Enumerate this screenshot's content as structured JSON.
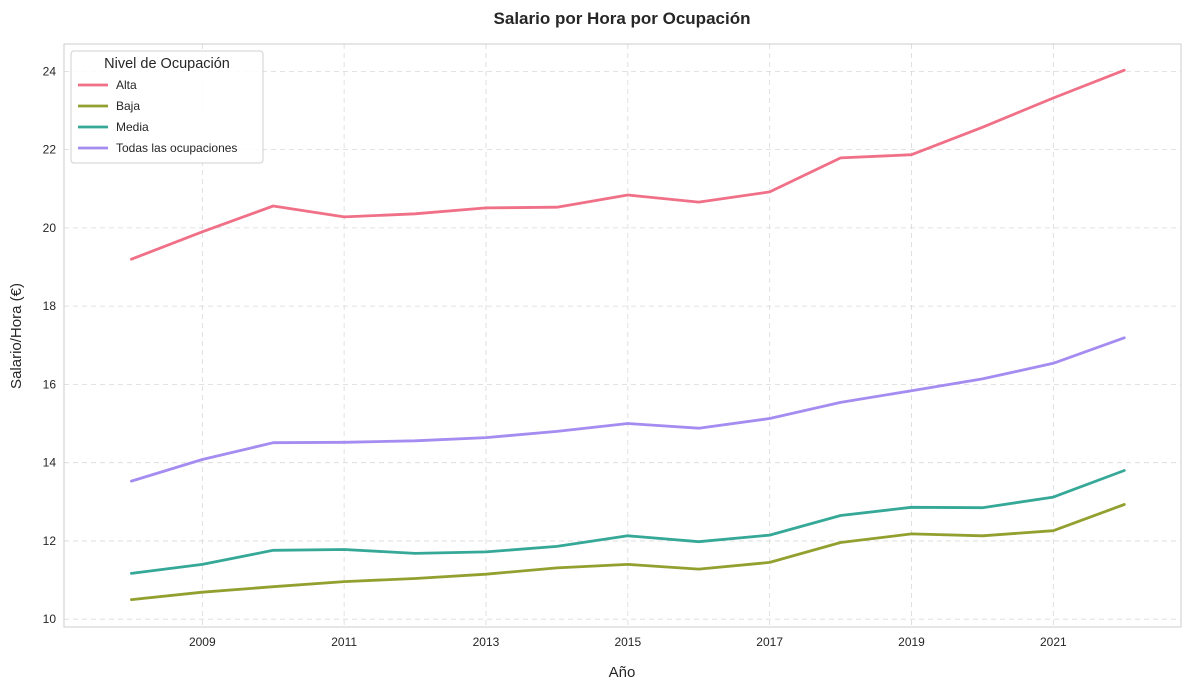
{
  "chart_data": {
    "type": "line",
    "title": "Salario por Hora por Ocupación",
    "xlabel": "Año",
    "ylabel": "Salario/Hora (€)",
    "x": [
      2008,
      2009,
      2010,
      2011,
      2012,
      2013,
      2014,
      2015,
      2016,
      2017,
      2018,
      2019,
      2020,
      2021,
      2022
    ],
    "xlim": [
      2007.05,
      2022.8
    ],
    "ylim": [
      9.8,
      24.7
    ],
    "xticks": [
      2009,
      2011,
      2013,
      2015,
      2017,
      2019,
      2021
    ],
    "yticks": [
      10,
      12,
      14,
      16,
      18,
      20,
      22,
      24
    ],
    "grid": true,
    "legend_title": "Nivel de Ocupación",
    "legend_position": "top-left",
    "series": [
      {
        "name": "Alta",
        "color": "#f07088",
        "values": [
          19.2,
          19.9,
          20.56,
          20.28,
          20.36,
          20.51,
          20.53,
          20.84,
          20.66,
          20.92,
          21.79,
          21.87,
          22.57,
          23.32,
          24.03
        ]
      },
      {
        "name": "Baja",
        "color": "#93a030",
        "values": [
          10.5,
          10.69,
          10.83,
          10.96,
          11.04,
          11.15,
          11.31,
          11.4,
          11.28,
          11.45,
          11.96,
          12.18,
          12.13,
          12.26,
          12.93
        ]
      },
      {
        "name": "Media",
        "color": "#36a898",
        "values": [
          11.17,
          11.4,
          11.76,
          11.78,
          11.68,
          11.72,
          11.86,
          12.13,
          11.98,
          12.15,
          12.65,
          12.86,
          12.85,
          13.12,
          13.8
        ]
      },
      {
        "name": "Todas las ocupaciones",
        "color": "#a48cf0",
        "values": [
          13.53,
          14.08,
          14.51,
          14.52,
          14.56,
          14.64,
          14.8,
          15.0,
          14.88,
          15.13,
          15.54,
          15.84,
          16.14,
          16.54,
          17.19
        ]
      }
    ]
  }
}
